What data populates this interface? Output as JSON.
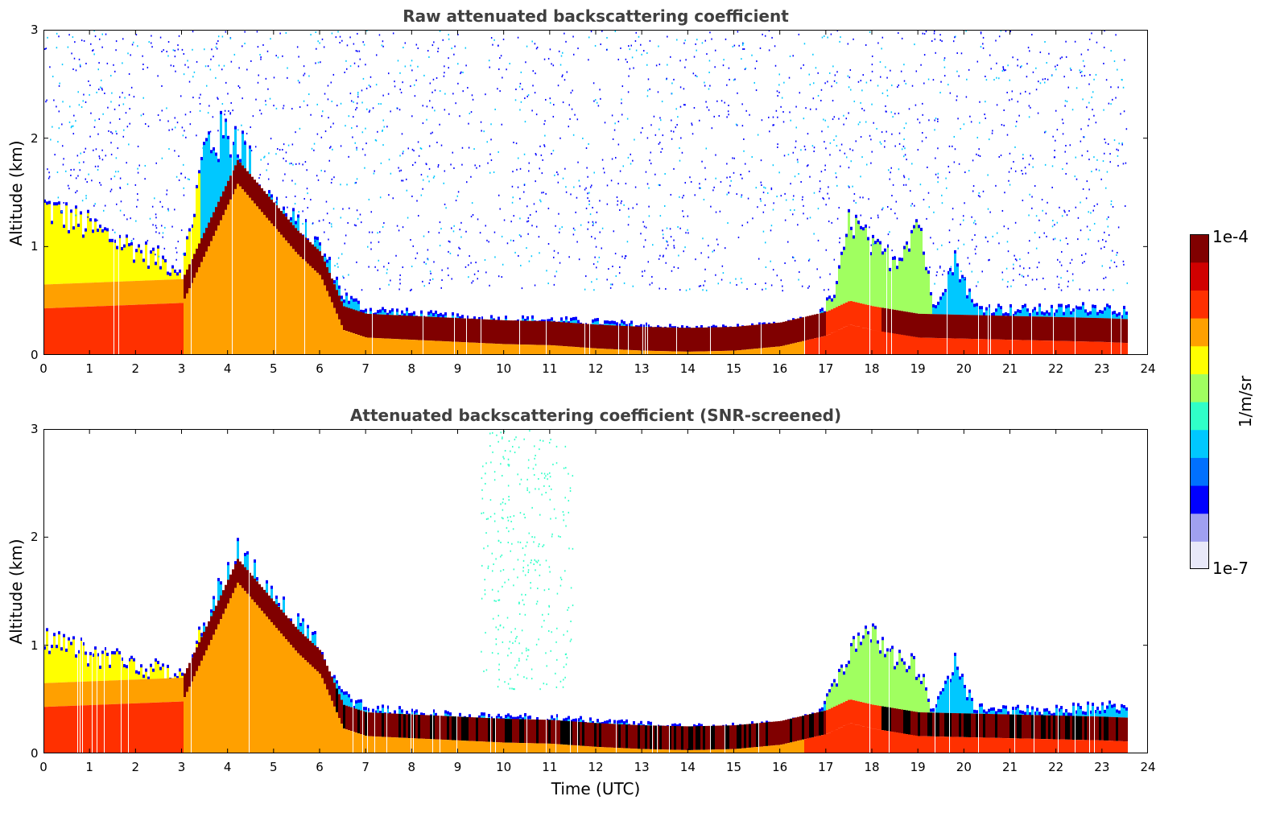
{
  "chart_data": [
    {
      "type": "heatmap",
      "id": "raw",
      "title": "Raw attenuated backscattering coefficient",
      "xlabel": "",
      "ylabel": "Altitude (km)",
      "xlim": [
        0,
        24
      ],
      "ylim": [
        0,
        3
      ],
      "xticks": [
        0,
        1,
        2,
        3,
        4,
        5,
        6,
        7,
        8,
        9,
        10,
        11,
        12,
        13,
        14,
        15,
        16,
        17,
        18,
        19,
        20,
        21,
        22,
        23,
        24
      ],
      "yticks": [
        0,
        1,
        2,
        3
      ],
      "data_end_hour": 23.55,
      "boundary_layer_top_km": [
        [
          0,
          1.4
        ],
        [
          1,
          1.2
        ],
        [
          2,
          1.0
        ],
        [
          3,
          0.8
        ],
        [
          3.5,
          2.0
        ],
        [
          4.2,
          2.1
        ],
        [
          4.6,
          1.6
        ],
        [
          5,
          1.4
        ],
        [
          5.5,
          1.2
        ],
        [
          6,
          1.0
        ],
        [
          6.5,
          0.55
        ],
        [
          7,
          0.42
        ],
        [
          8,
          0.38
        ],
        [
          9,
          0.34
        ],
        [
          10,
          0.33
        ],
        [
          11,
          0.32
        ],
        [
          12,
          0.3
        ],
        [
          13,
          0.27
        ],
        [
          14,
          0.24
        ],
        [
          15,
          0.25
        ],
        [
          16,
          0.27
        ],
        [
          16.8,
          0.35
        ],
        [
          17.2,
          0.6
        ],
        [
          17.5,
          1.3
        ],
        [
          18,
          1.0
        ],
        [
          18.5,
          0.9
        ],
        [
          19,
          1.3
        ],
        [
          19.3,
          0.45
        ],
        [
          19.8,
          0.9
        ],
        [
          20.2,
          0.45
        ],
        [
          21,
          0.42
        ],
        [
          22,
          0.42
        ],
        [
          23,
          0.45
        ],
        [
          23.55,
          0.4
        ]
      ],
      "aerosol_layer_km": [
        [
          0,
          0.55
        ],
        [
          3,
          0.6
        ],
        [
          4.2,
          1.7
        ],
        [
          4.6,
          1.5
        ],
        [
          5,
          1.3
        ],
        [
          5.5,
          1.05
        ],
        [
          6,
          0.85
        ],
        [
          6.5,
          0.35
        ],
        [
          7,
          0.28
        ],
        [
          8,
          0.26
        ],
        [
          9,
          0.24
        ],
        [
          10,
          0.22
        ],
        [
          11,
          0.21
        ],
        [
          12,
          0.18
        ],
        [
          13,
          0.16
        ],
        [
          14,
          0.15
        ],
        [
          15,
          0.16
        ],
        [
          16,
          0.2
        ],
        [
          17,
          0.3
        ],
        [
          17.5,
          0.4
        ],
        [
          18,
          0.35
        ],
        [
          19,
          0.28
        ],
        [
          20,
          0.27
        ],
        [
          21,
          0.26
        ],
        [
          22,
          0.25
        ],
        [
          23,
          0.24
        ],
        [
          23.55,
          0.23
        ]
      ],
      "noise": "heavy"
    },
    {
      "type": "heatmap",
      "id": "snr",
      "title": "Attenuated backscattering coefficient (SNR-screened)",
      "xlabel": "Time (UTC)",
      "ylabel": "Altitude (km)",
      "xlim": [
        0,
        24
      ],
      "ylim": [
        0,
        3
      ],
      "xticks": [
        0,
        1,
        2,
        3,
        4,
        5,
        6,
        7,
        8,
        9,
        10,
        11,
        12,
        13,
        14,
        15,
        16,
        17,
        18,
        19,
        20,
        21,
        22,
        23,
        24
      ],
      "yticks": [
        0,
        1,
        2,
        3
      ],
      "data_end_hour": 23.55,
      "boundary_layer_top_km": [
        [
          0,
          1.1
        ],
        [
          1,
          0.95
        ],
        [
          2,
          0.85
        ],
        [
          3,
          0.7
        ],
        [
          3.5,
          1.2
        ],
        [
          4.2,
          1.9
        ],
        [
          4.6,
          1.6
        ],
        [
          5,
          1.4
        ],
        [
          5.5,
          1.2
        ],
        [
          6,
          1.0
        ],
        [
          6.5,
          0.55
        ],
        [
          7,
          0.42
        ],
        [
          8,
          0.38
        ],
        [
          9,
          0.34
        ],
        [
          10,
          0.33
        ],
        [
          11,
          0.32
        ],
        [
          12,
          0.3
        ],
        [
          13,
          0.27
        ],
        [
          14,
          0.24
        ],
        [
          15,
          0.25
        ],
        [
          16,
          0.27
        ],
        [
          16.8,
          0.35
        ],
        [
          17.2,
          0.7
        ],
        [
          17.5,
          1.0
        ],
        [
          18,
          1.1
        ],
        [
          18.5,
          0.9
        ],
        [
          19,
          0.8
        ],
        [
          19.3,
          0.4
        ],
        [
          19.8,
          0.85
        ],
        [
          20.2,
          0.42
        ],
        [
          21,
          0.4
        ],
        [
          22,
          0.4
        ],
        [
          23,
          0.45
        ],
        [
          23.55,
          0.4
        ]
      ],
      "aerosol_layer_km": [
        [
          0,
          0.55
        ],
        [
          3,
          0.6
        ],
        [
          4.2,
          1.7
        ],
        [
          4.6,
          1.5
        ],
        [
          5,
          1.3
        ],
        [
          5.5,
          1.05
        ],
        [
          6,
          0.85
        ],
        [
          6.5,
          0.35
        ],
        [
          7,
          0.28
        ],
        [
          8,
          0.26
        ],
        [
          9,
          0.24
        ],
        [
          10,
          0.22
        ],
        [
          11,
          0.21
        ],
        [
          12,
          0.18
        ],
        [
          13,
          0.16
        ],
        [
          14,
          0.15
        ],
        [
          15,
          0.16
        ],
        [
          16,
          0.2
        ],
        [
          17,
          0.3
        ],
        [
          17.5,
          0.4
        ],
        [
          18,
          0.35
        ],
        [
          19,
          0.28
        ],
        [
          20,
          0.27
        ],
        [
          21,
          0.26
        ],
        [
          22,
          0.25
        ],
        [
          23,
          0.24
        ],
        [
          23.55,
          0.23
        ]
      ],
      "noise": "light"
    }
  ],
  "colorbar": {
    "max_label": "1e-4",
    "min_label": "1e-7",
    "unit": "1/m/sr",
    "scale": "log",
    "colormap": [
      "#e8e8f8",
      "#a0a0f0",
      "#0000ff",
      "#0070ff",
      "#00c8ff",
      "#30ffc8",
      "#a0ff60",
      "#ffff00",
      "#ffa000",
      "#ff3000",
      "#d00000",
      "#800000"
    ]
  }
}
